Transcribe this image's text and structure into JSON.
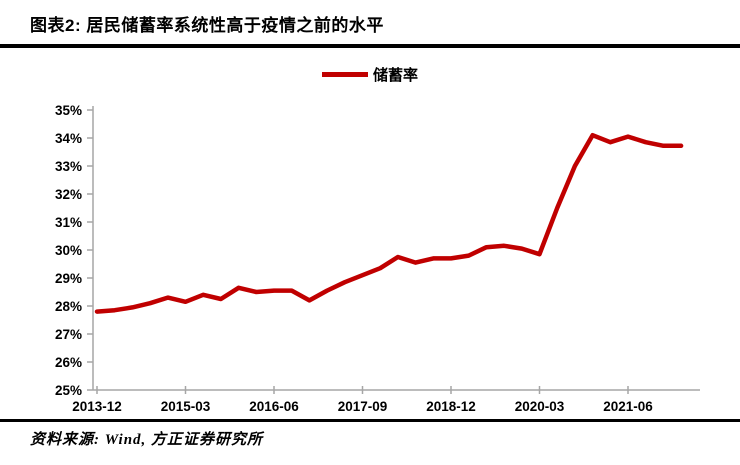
{
  "header": {
    "title": "图表2: 居民储蓄率系统性高于疫情之前的水平"
  },
  "legend": {
    "label": "储蓄率"
  },
  "chart_data": {
    "type": "line",
    "title": "居民储蓄率",
    "series": [
      {
        "name": "储蓄率",
        "color": "#c00000",
        "values": [
          27.8,
          27.85,
          27.95,
          28.1,
          28.3,
          28.15,
          28.4,
          28.25,
          28.65,
          28.5,
          28.55,
          28.55,
          28.2,
          28.55,
          28.85,
          29.1,
          29.35,
          29.75,
          29.55,
          29.7,
          29.7,
          29.8,
          30.1,
          30.15,
          30.05,
          29.85,
          31.5,
          33.0,
          34.1,
          33.85,
          34.05,
          33.85,
          33.72,
          33.72
        ]
      }
    ],
    "x": [
      "2013-12",
      "2014-03",
      "2014-06",
      "2014-09",
      "2014-12",
      "2015-03",
      "2015-06",
      "2015-09",
      "2015-12",
      "2016-03",
      "2016-06",
      "2016-09",
      "2016-12",
      "2017-03",
      "2017-06",
      "2017-09",
      "2017-12",
      "2018-03",
      "2018-06",
      "2018-09",
      "2018-12",
      "2019-03",
      "2019-06",
      "2019-09",
      "2019-12",
      "2020-03",
      "2020-06",
      "2020-09",
      "2020-12",
      "2021-03",
      "2021-06",
      "2021-09",
      "2021-12",
      "2022-03"
    ],
    "x_tick_labels": [
      "2013-12",
      "2015-03",
      "2016-06",
      "2017-09",
      "2018-12",
      "2020-03",
      "2021-06"
    ],
    "x_tick_indices": [
      0,
      5,
      10,
      15,
      20,
      25,
      30
    ],
    "y_tick_labels": [
      "25%",
      "26%",
      "27%",
      "28%",
      "29%",
      "30%",
      "31%",
      "32%",
      "33%",
      "34%",
      "35%"
    ],
    "ylim": [
      25,
      35
    ],
    "y_tick_step": 1,
    "y_tick_suffix": "%",
    "grid": false,
    "legend_position": "top-center",
    "axis_color": "#a6a6a6",
    "tick_label_color": "#000000"
  },
  "footer": {
    "source": "资料来源: Wind, 方正证券研究所"
  }
}
